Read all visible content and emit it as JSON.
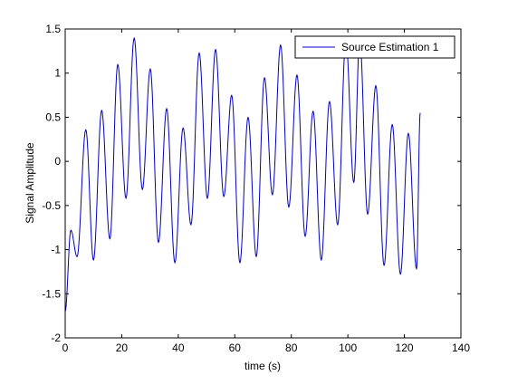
{
  "chart_data": {
    "type": "line",
    "title": "",
    "xlabel": "time (s)",
    "ylabel": "Signal Amplitude",
    "xlim": [
      0,
      140
    ],
    "ylim": [
      -2,
      1.5
    ],
    "xticks": [
      0,
      20,
      40,
      60,
      80,
      100,
      120,
      140
    ],
    "xtick_labels": [
      "0",
      "20",
      "40",
      "60",
      "80",
      "100",
      "120",
      "140"
    ],
    "yticks": [
      -2,
      -1.5,
      -1,
      -0.5,
      0,
      0.5,
      1,
      1.5
    ],
    "ytick_labels": [
      "-2",
      "-1.5",
      "-1",
      "-0.5",
      "0",
      "0.5",
      "1",
      "1.5"
    ],
    "grid": false,
    "legend_position": "top-right",
    "series": [
      {
        "name": "Source Estimation 1",
        "color": "#0000c0",
        "x_start": 0,
        "x_end": 125.6,
        "peaks": [
          [
            0.0,
            -1.7
          ],
          [
            2.0,
            -0.78
          ],
          [
            4.2,
            -1.08
          ],
          [
            7.3,
            0.36
          ],
          [
            10.0,
            -1.12
          ],
          [
            12.9,
            0.58
          ],
          [
            15.8,
            -0.88
          ],
          [
            18.6,
            1.1
          ],
          [
            21.5,
            -0.42
          ],
          [
            24.4,
            1.4
          ],
          [
            27.3,
            -0.32
          ],
          [
            30.1,
            1.05
          ],
          [
            33.0,
            -0.92
          ],
          [
            35.9,
            0.6
          ],
          [
            38.8,
            -1.15
          ],
          [
            41.7,
            0.38
          ],
          [
            44.5,
            -0.72
          ],
          [
            47.4,
            1.23
          ],
          [
            50.3,
            -0.42
          ],
          [
            53.2,
            1.27
          ],
          [
            56.1,
            -0.4
          ],
          [
            58.9,
            0.75
          ],
          [
            61.8,
            -1.15
          ],
          [
            64.7,
            0.5
          ],
          [
            67.6,
            -1.08
          ],
          [
            70.5,
            0.95
          ],
          [
            73.3,
            -0.38
          ],
          [
            76.2,
            1.32
          ],
          [
            79.1,
            -0.52
          ],
          [
            82.0,
            0.98
          ],
          [
            84.9,
            -0.85
          ],
          [
            87.7,
            0.57
          ],
          [
            90.6,
            -1.12
          ],
          [
            93.5,
            0.68
          ],
          [
            96.4,
            -0.72
          ],
          [
            99.3,
            1.38
          ],
          [
            102.1,
            -0.24
          ],
          [
            104.2,
            1.4
          ],
          [
            107.0,
            -0.6
          ],
          [
            109.9,
            0.86
          ],
          [
            112.8,
            -1.18
          ],
          [
            115.7,
            0.42
          ],
          [
            118.6,
            -1.28
          ],
          [
            121.4,
            0.32
          ],
          [
            124.3,
            -1.22
          ],
          [
            125.6,
            0.55
          ]
        ]
      }
    ]
  }
}
